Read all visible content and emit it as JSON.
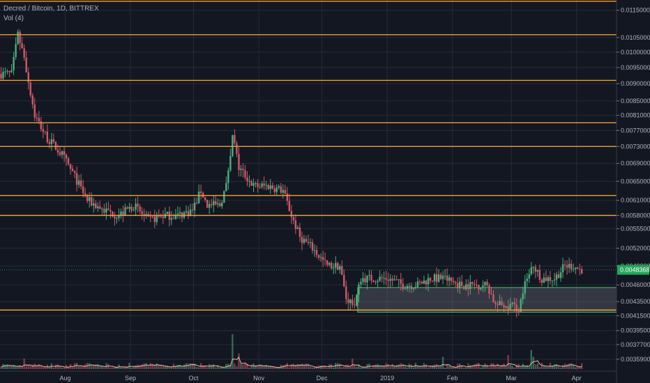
{
  "header": {
    "symbol_line": "Decred / Bitcoin, 1D, BITTREX",
    "volume_line": "Vol (4)"
  },
  "colors": {
    "background": "#131722",
    "grid": "#262b38",
    "up": "#4caf7d",
    "down": "#d05a6a",
    "level_line": "#f0a030",
    "zone_border": "#48c76a",
    "zone_fill": "#8a8f9c",
    "volume_ma": "#f5b3a0",
    "last_price_bg": "#26a65b",
    "axis_text": "#b2b5be"
  },
  "chart_data": {
    "type": "candlestick",
    "y_axis": {
      "scale": "log",
      "range": [
        0.00345,
        0.0119
      ],
      "tick_labels": [
        "0.01150000",
        "0.01050000",
        "0.01000000",
        "0.00950000",
        "0.00900000",
        "0.00850000",
        "0.00810000",
        "0.00770000",
        "0.00730000",
        "0.00690000",
        "0.00650000",
        "0.00610000",
        "0.00580000",
        "0.00555000",
        "0.00520000",
        "0.00490000",
        "0.00460000",
        "0.00435000",
        "0.00415000",
        "0.00395000",
        "0.00377000",
        "0.00359000"
      ],
      "tick_values": [
        0.0115,
        0.0105,
        0.01,
        0.0095,
        0.009,
        0.0085,
        0.0081,
        0.0077,
        0.0073,
        0.0069,
        0.0065,
        0.0061,
        0.0058,
        0.00555,
        0.0052,
        0.0049,
        0.0046,
        0.00435,
        0.00415,
        0.00395,
        0.00377,
        0.00359
      ]
    },
    "x_axis": {
      "range": [
        "2018-07-01",
        "2019-04-20"
      ],
      "tick_labels": [
        "Aug",
        "Sep",
        "Oct",
        "Nov",
        "Dec",
        "2019",
        "Feb",
        "Mar",
        "Apr"
      ],
      "tick_dates": [
        "2018-08-01",
        "2018-09-01",
        "2018-10-01",
        "2018-11-01",
        "2018-12-01",
        "2019-01-01",
        "2019-02-01",
        "2019-03-01",
        "2019-04-01"
      ]
    },
    "grid": true,
    "last_price": {
      "label": "0.00483687",
      "value": 0.00483687
    },
    "horizontal_levels": [
      0.01185,
      0.0106,
      0.0091,
      0.0079,
      0.0073,
      0.0062,
      0.0058,
      0.00423
    ],
    "support_zone": {
      "start": "2018-12-18",
      "end": "2019-04-20",
      "low": 0.0042,
      "high": 0.00456
    },
    "price_path": [
      [
        "2018-07-01",
        0.0093
      ],
      [
        "2018-07-07",
        0.0093
      ],
      [
        "2018-07-10",
        0.0106
      ],
      [
        "2018-07-13",
        0.0098
      ],
      [
        "2018-07-18",
        0.0081
      ],
      [
        "2018-07-24",
        0.0075
      ],
      [
        "2018-07-31",
        0.0071
      ],
      [
        "2018-08-06",
        0.0066
      ],
      [
        "2018-08-12",
        0.0061
      ],
      [
        "2018-08-20",
        0.0059
      ],
      [
        "2018-08-27",
        0.0058
      ],
      [
        "2018-09-03",
        0.006
      ],
      [
        "2018-09-10",
        0.0057
      ],
      [
        "2018-09-17",
        0.0058
      ],
      [
        "2018-09-24",
        0.0058
      ],
      [
        "2018-10-01",
        0.0059
      ],
      [
        "2018-10-05",
        0.0063
      ],
      [
        "2018-10-08",
        0.006
      ],
      [
        "2018-10-14",
        0.006
      ],
      [
        "2018-10-17",
        0.0064
      ],
      [
        "2018-10-20",
        0.0076
      ],
      [
        "2018-10-23",
        0.0068
      ],
      [
        "2018-10-30",
        0.0064
      ],
      [
        "2018-11-06",
        0.0064
      ],
      [
        "2018-11-13",
        0.0063
      ],
      [
        "2018-11-17",
        0.0058
      ],
      [
        "2018-11-21",
        0.0054
      ],
      [
        "2018-11-27",
        0.0052
      ],
      [
        "2018-12-04",
        0.0049
      ],
      [
        "2018-12-10",
        0.0049
      ],
      [
        "2018-12-13",
        0.0044
      ],
      [
        "2018-12-17",
        0.0043
      ],
      [
        "2018-12-20",
        0.0047
      ],
      [
        "2018-12-26",
        0.0047
      ],
      [
        "2019-01-02",
        0.0047
      ],
      [
        "2019-01-09",
        0.0046
      ],
      [
        "2019-01-16",
        0.0046
      ],
      [
        "2019-01-22",
        0.0047
      ],
      [
        "2019-01-29",
        0.0047
      ],
      [
        "2019-02-05",
        0.0046
      ],
      [
        "2019-02-12",
        0.0046
      ],
      [
        "2019-02-18",
        0.0046
      ],
      [
        "2019-02-22",
        0.0043
      ],
      [
        "2019-03-01",
        0.0043
      ],
      [
        "2019-03-05",
        0.00425
      ],
      [
        "2019-03-08",
        0.0046
      ],
      [
        "2019-03-12",
        0.0049
      ],
      [
        "2019-03-16",
        0.0047
      ],
      [
        "2019-03-22",
        0.0047
      ],
      [
        "2019-03-27",
        0.0049
      ],
      [
        "2019-03-31",
        0.0049
      ],
      [
        "2019-04-03",
        0.00484
      ]
    ],
    "volume_spikes": [
      [
        "2018-07-12",
        0.3
      ],
      [
        "2018-10-19",
        1.0
      ],
      [
        "2018-10-22",
        0.45
      ],
      [
        "2018-12-15",
        0.3
      ],
      [
        "2019-01-27",
        0.35
      ],
      [
        "2019-02-27",
        0.4
      ],
      [
        "2019-03-10",
        0.55
      ],
      [
        "2019-03-11",
        0.35
      ]
    ]
  }
}
